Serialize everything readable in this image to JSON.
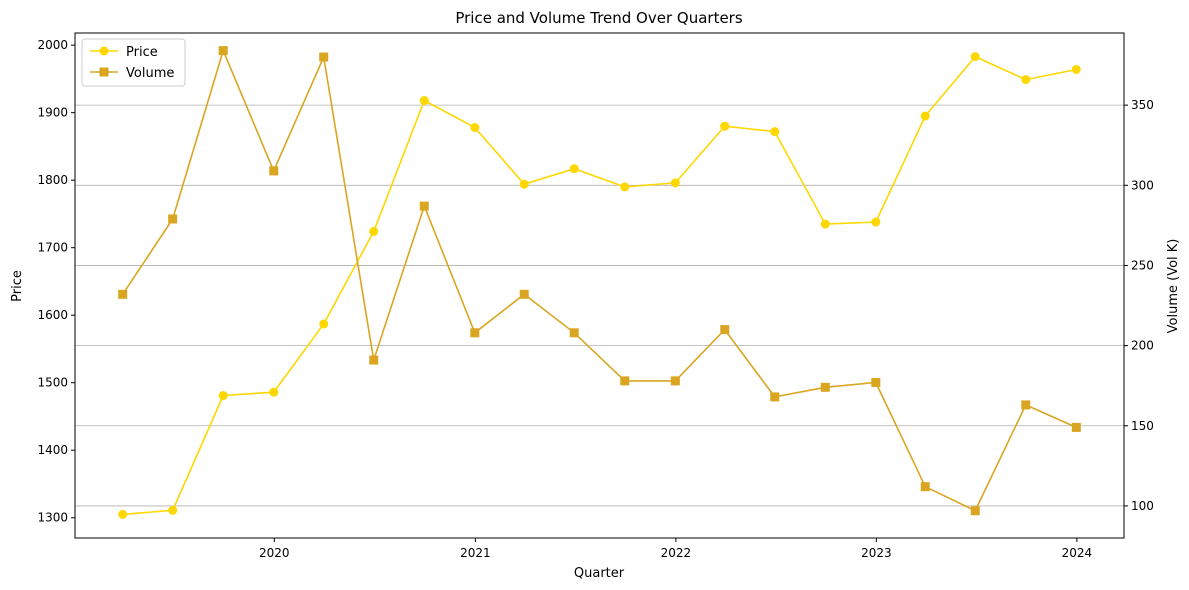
{
  "chart_data": {
    "type": "line",
    "title": "Price and Volume Trend Over Quarters",
    "xlabel": "Quarter",
    "ylabel_left": "Price",
    "ylabel_right": "Volume (Vol K)",
    "x": [
      "2019-03-31",
      "2019-06-30",
      "2019-09-30",
      "2019-12-31",
      "2020-03-31",
      "2020-06-30",
      "2020-09-30",
      "2020-12-31",
      "2021-03-31",
      "2021-06-30",
      "2021-09-30",
      "2021-12-31",
      "2022-03-31",
      "2022-06-30",
      "2022-09-30",
      "2022-12-31",
      "2023-03-31",
      "2023-06-30",
      "2023-09-30",
      "2023-12-31"
    ],
    "x_ticks": [
      "2020",
      "2021",
      "2022",
      "2023",
      "2024"
    ],
    "ylim_left": [
      1270,
      2018
    ],
    "yticks_left": [
      1300,
      1400,
      1500,
      1600,
      1700,
      1800,
      1900,
      2000
    ],
    "ylim_right": [
      80,
      395
    ],
    "yticks_right": [
      100,
      150,
      200,
      250,
      300,
      350
    ],
    "grid": "horizontal, right axis",
    "legend_position": "top-left",
    "series": [
      {
        "name": "Price",
        "axis": "left",
        "marker": "circle",
        "color": "#FFD700",
        "values": [
          1305,
          1311,
          1481,
          1486,
          1587,
          1724,
          1918,
          1878,
          1794,
          1817,
          1790,
          1796,
          1880,
          1872,
          1735,
          1738,
          1895,
          1983,
          1949,
          1964
        ]
      },
      {
        "name": "Volume",
        "axis": "right",
        "marker": "square",
        "color": "#DAA520",
        "values": [
          232,
          279,
          384,
          309,
          380,
          191,
          287,
          208,
          232,
          208,
          178,
          178,
          210,
          168,
          174,
          177,
          112,
          97,
          163,
          149
        ]
      }
    ]
  }
}
